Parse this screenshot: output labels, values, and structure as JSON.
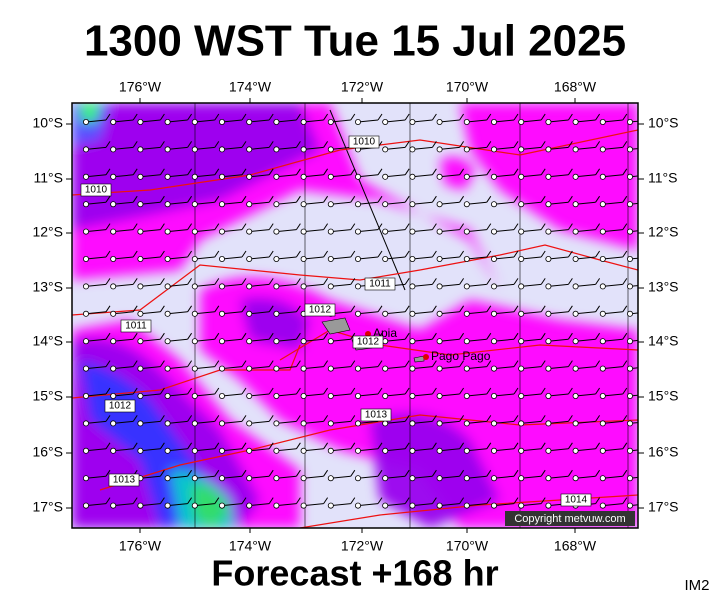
{
  "header": {
    "title": "1300 WST Tue 15 Jul 2025"
  },
  "map": {
    "lon_labels": [
      "176°W",
      "174°W",
      "172°W",
      "170°W",
      "168°W"
    ],
    "lat_labels": [
      "10°S",
      "11°S",
      "12°S",
      "13°S",
      "14°S",
      "15°S",
      "16°S",
      "17°S"
    ],
    "places": [
      "Apia",
      "Pago Pago"
    ],
    "isobar_labels": [
      "1010",
      "1010",
      "1011",
      "1011",
      "1012",
      "1012",
      "1012",
      "1013",
      "1013",
      "1014"
    ],
    "copyright": "Copyright metvuw.com"
  },
  "footer": {
    "forecast": "Forecast +168 hr",
    "code": "IM2"
  }
}
